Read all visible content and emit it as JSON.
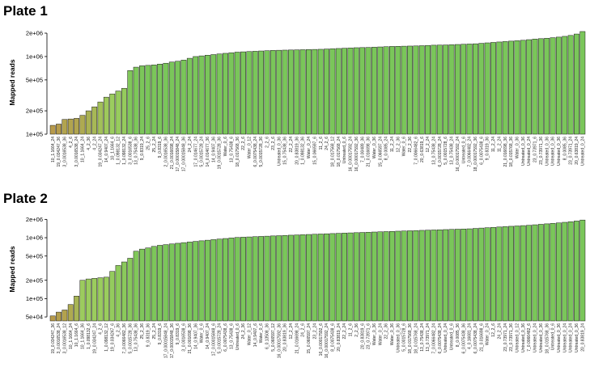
{
  "chart_data": [
    {
      "type": "bar",
      "title": "Plate 1",
      "ylabel": "Mapped reads",
      "yscale": "log",
      "ylim": [
        100000,
        2150000
      ],
      "yticks": [
        100000,
        200000,
        500000,
        1000000,
        2000000
      ],
      "ytick_labels": [
        "1e+05",
        "2e+05",
        "5e+05",
        "1e+06",
        "2e+06"
      ],
      "categories": [
        "10_1.1664_24",
        "19_0.034247_36",
        "3_0.0016538_36",
        "4_2_6",
        "3_0.0016538_24",
        "10_1.1664_24",
        "4_2_36",
        "4_2_24",
        "19_0.034247_24",
        "14_0.9407_24",
        "10_1.1664_6",
        "1_0.098132_12",
        "1_0.098132_24",
        "3_0.0016538_6",
        "13_0.75438_36",
        "9_0.8319_24",
        "25_2_6",
        "25_2_24",
        "9_0.8319_6",
        "2_0.0016538_36",
        "21_0.0016698_24",
        "17_0.00015848_24",
        "17_0.00015848_36",
        "24_2_24",
        "17_0.014677_24",
        "5_0.0015728_24",
        "14_0.014677_36",
        "14_0.9407_36",
        "19_0.0015728_36",
        "Water_0_6",
        "13_0.75438_6",
        "18_0.017568_36",
        "22_2_6",
        "Water_0_12",
        "6_0.0075438_24",
        "5_0.0015728_36",
        "2_2_6",
        "23_2_6",
        "Untreated_0_36",
        "15_0.75438_36",
        "22_2_24",
        "20_0.83819_36",
        "1_0.098132_36",
        "Water_0_24",
        "15_0.066597_6",
        "11_2_6",
        "24_2_6",
        "18_0.017568_12",
        "18_0.017568_24",
        "Untreated_0_6",
        "16_0.00017592_24",
        "16_0.00017592_36",
        "7_0.00489_36",
        "21_0.016698_36",
        "Water_0_36",
        "15_0.066597_24",
        "8_0.0085_24",
        "11_2_24",
        "12_2_36",
        "Water_0_6",
        "22_2_36",
        "7_0.0066482_6",
        "20_0.63819_6",
        "12_2_24",
        "13_0.75438_24",
        "6_0.0015728_24",
        "5_0.0015728_6",
        "13_0.75438_24",
        "16_0.00017592_24",
        "Untreated_0_6",
        "7_0.0066482_24",
        "18_0.00017592_36",
        "6_0.0075438_6",
        "9_0.8319_36",
        "11_2_24",
        "11_2_24",
        "21_0.016698_36",
        "18_0.015768_36",
        "Water_0_36",
        "Untreated_0_36",
        "Untreated_0_24",
        "23_0.73971_6",
        "23_0.73971_36",
        "Untreated_0_36",
        "Untreated_0_36",
        "Untreated_0_36",
        "8_0.0085_36",
        "23_0.73971_24",
        "20_0.63819_24",
        "Untreated_0_24"
      ],
      "values": [
        130000,
        135000,
        155000,
        157000,
        160000,
        175000,
        200000,
        225000,
        260000,
        300000,
        330000,
        360000,
        390000,
        660000,
        730000,
        760000,
        770000,
        780000,
        800000,
        820000,
        850000,
        870000,
        900000,
        950000,
        1000000,
        1020000,
        1040000,
        1060000,
        1080000,
        1100000,
        1120000,
        1140000,
        1150000,
        1160000,
        1170000,
        1180000,
        1190000,
        1200000,
        1205000,
        1210000,
        1215000,
        1220000,
        1225000,
        1230000,
        1235000,
        1240000,
        1250000,
        1260000,
        1270000,
        1280000,
        1290000,
        1300000,
        1305000,
        1310000,
        1320000,
        1330000,
        1340000,
        1350000,
        1355000,
        1360000,
        1365000,
        1370000,
        1380000,
        1390000,
        1400000,
        1405000,
        1410000,
        1420000,
        1430000,
        1440000,
        1450000,
        1460000,
        1480000,
        1500000,
        1520000,
        1540000,
        1560000,
        1580000,
        1600000,
        1620000,
        1650000,
        1680000,
        1700000,
        1720000,
        1750000,
        1780000,
        1820000,
        1870000,
        1950000,
        2100000
      ]
    },
    {
      "type": "bar",
      "title": "Plate 2",
      "ylabel": "Mapped reads",
      "yscale": "log",
      "ylim": [
        43000,
        2150000
      ],
      "yticks": [
        50000,
        100000,
        200000,
        500000,
        1000000,
        2000000
      ],
      "ytick_labels": [
        "5e+04",
        "1e+05",
        "2e+05",
        "5e+05",
        "1e+06",
        "2e+06"
      ],
      "categories": [
        "19_0.034247_36",
        "3_0.0016538_24",
        "3_0.0016538_12",
        "10_1.1664_24",
        "10_1.1664_6",
        "10_1.1664_36",
        "1_0.098132_6",
        "19_0.034247_24",
        "4_2_6",
        "1_0.098132_12",
        "19_0.034247_6",
        "4_2_36",
        "7_0.0066482_36",
        "5_0.0015728_36",
        "13_0.75438_36",
        "25_2_36",
        "9_0.8319_36",
        "25_2_24",
        "9_0.8319_6",
        "17_0.00015848_24",
        "17_0.00015848_36",
        "9_0.8319_6",
        "3_0.0016538_6",
        "21_0.001698_36",
        "14_0.9407_36",
        "Water_0_6",
        "14_0.9407_24",
        "17_0.00015848_6",
        "5_0.0015728_24",
        "6_0.0075438_6",
        "13_0.75438_6",
        "Untreated_0_6",
        "24_2_36",
        "Water_0_12",
        "14_0.9407_6",
        "Water_0_6",
        "6_0.13508_36",
        "5_0.066597_12",
        "16_0.00017592_36",
        "20_0.83819_36",
        "12_2_24",
        "21_0.016698_24",
        "24_2_6",
        "15_0.066597_24",
        "23_2_24",
        "16_0.00017592_6",
        "16_0.00017592_24",
        "8_0.0075438_6",
        "20_0.83819_24",
        "22_2_24",
        "11_2_6",
        "2_2_36",
        "20_0.83819_6",
        "23_0.73971_6",
        "Water_0_36",
        "Water_0_24",
        "22_2_36",
        "Water_0_36",
        "Untreated_0_36",
        "5_0.0015728_6",
        "18_0.017568_36",
        "18_0.015768_24",
        "13_0.75438_24",
        "13_0.73971_24",
        "7_0.0066482_24",
        "6_0.0075438_24",
        "Untreated_0_24",
        "Untreated_0_6",
        "8_0.0085_36",
        "6_0.0075438_36",
        "4_0.16681_24",
        "6_0.0075438_24",
        "21_0.016698_6",
        "Water_0_24",
        "12_2_6",
        "24_2_24",
        "23_0.73971_24",
        "23_0.73971_36",
        "Untreated_0_12",
        "Untreated_0_36",
        "7_0.0066482_6",
        "Untreated_0_24",
        "Untreated_0_36",
        "18_0.015768_36",
        "Untreated_0_6",
        "Untreated_0_36",
        "Untreated_0_24",
        "Untreated_0_24",
        "Untreated_0_36",
        "20_0.83819_24"
      ],
      "values": [
        52000,
        60000,
        65000,
        80000,
        110000,
        200000,
        210000,
        215000,
        220000,
        225000,
        280000,
        350000,
        400000,
        460000,
        600000,
        650000,
        680000,
        720000,
        750000,
        770000,
        790000,
        810000,
        830000,
        850000,
        870000,
        890000,
        910000,
        930000,
        950000,
        970000,
        990000,
        1010000,
        1020000,
        1030000,
        1040000,
        1050000,
        1060000,
        1070000,
        1080000,
        1090000,
        1100000,
        1110000,
        1120000,
        1130000,
        1140000,
        1150000,
        1160000,
        1170000,
        1180000,
        1190000,
        1200000,
        1210000,
        1220000,
        1230000,
        1240000,
        1250000,
        1260000,
        1270000,
        1280000,
        1290000,
        1300000,
        1310000,
        1320000,
        1330000,
        1340000,
        1350000,
        1360000,
        1370000,
        1380000,
        1390000,
        1400000,
        1420000,
        1440000,
        1460000,
        1480000,
        1500000,
        1520000,
        1540000,
        1560000,
        1580000,
        1600000,
        1630000,
        1660000,
        1690000,
        1720000,
        1750000,
        1790000,
        1830000,
        1880000,
        1950000
      ]
    }
  ],
  "colors": {
    "bar_low": "#b79a4a",
    "bar_mid": "#9ccc5e",
    "bar_high": "#7ac65a",
    "axis": "#000000"
  }
}
